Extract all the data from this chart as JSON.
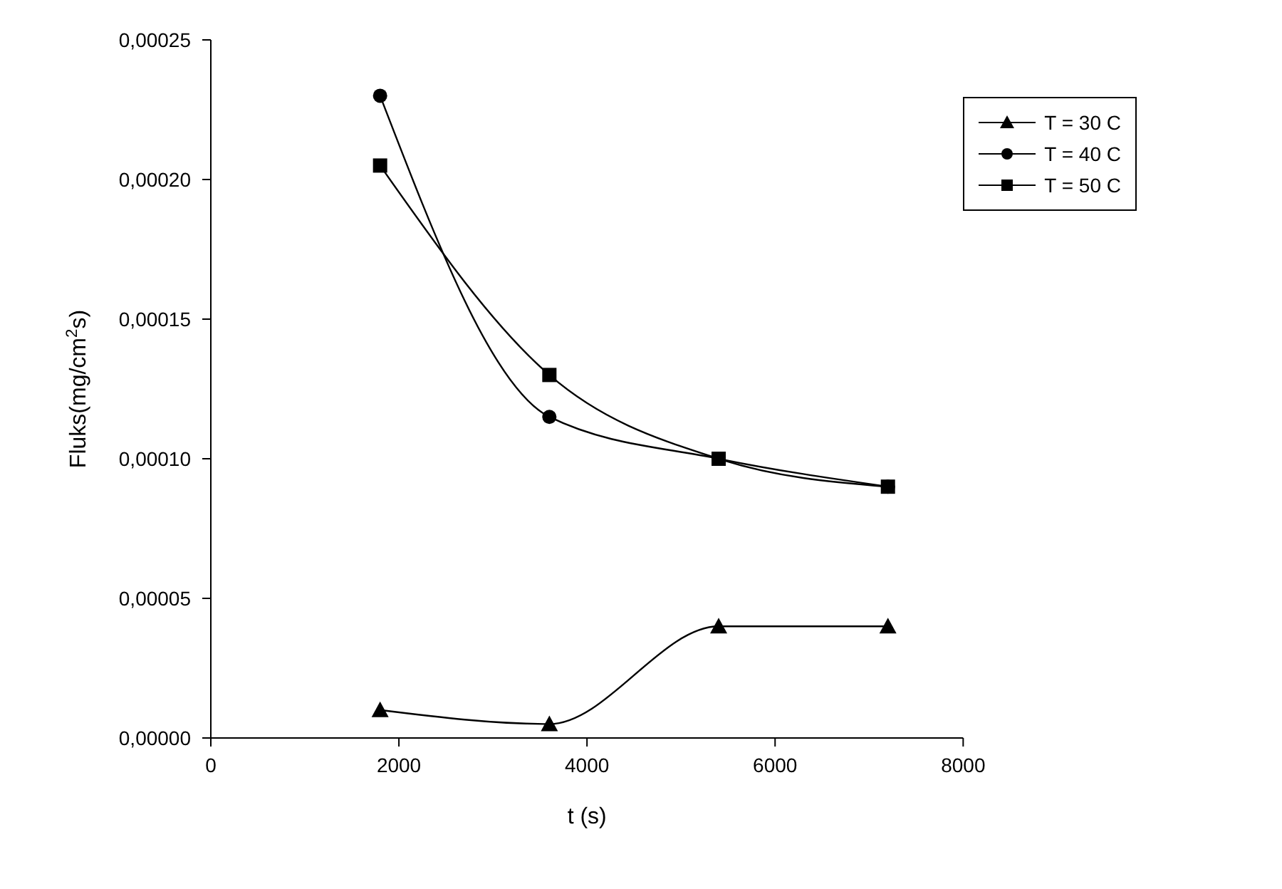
{
  "chart_data": {
    "type": "line",
    "xlabel": "t (s)",
    "ylabel": "Fluks(mg/cm$^{2}$s)",
    "x": [
      1800,
      3600,
      5400,
      7200
    ],
    "series": [
      {
        "name": "T = 30 C",
        "color": "#000000",
        "marker": "triangle",
        "values": [
          1e-05,
          5e-06,
          4e-05,
          4e-05
        ]
      },
      {
        "name": "T = 40 C",
        "color": "#000000",
        "marker": "circle",
        "values": [
          0.00023,
          0.000115,
          0.0001,
          9e-05
        ]
      },
      {
        "name": "T = 50 C",
        "color": "#000000",
        "marker": "square",
        "values": [
          0.000205,
          0.00013,
          0.0001,
          9e-05
        ]
      }
    ],
    "xlim": [
      0,
      8000
    ],
    "xticks": [
      0,
      2000,
      4000,
      6000,
      8000
    ],
    "ylim": [
      0,
      0.00025
    ],
    "yticks": [
      {
        "value": 0,
        "label": "0,00000"
      },
      {
        "value": 5e-05,
        "label": "0,00005"
      },
      {
        "value": 0.0001,
        "label": "0,00010"
      },
      {
        "value": 0.00015,
        "label": "0,00015"
      },
      {
        "value": 0.0002,
        "label": "0,00020"
      },
      {
        "value": 0.00025,
        "label": "0,00025"
      }
    ],
    "grid": false,
    "legend": "top right",
    "line_style": "solid"
  }
}
